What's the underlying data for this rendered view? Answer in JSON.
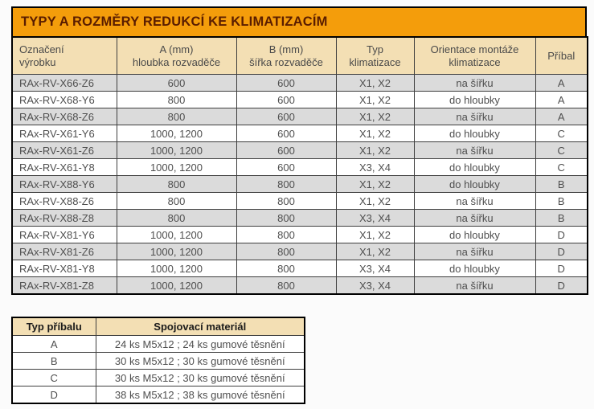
{
  "title_bar": {
    "text": "TYPY A ROZMĚRY REDUKCÍ KE KLIMATIZACÍM"
  },
  "colors": {
    "title_bg": "#F49D0B",
    "title_text": "#5A1D00",
    "header_bg": "#F3DFB4",
    "stripe_row_bg": "#DBDBDB",
    "row_bg": "#FFFFFF",
    "body_text": "#4F4F4F",
    "border": "#000000"
  },
  "main_table": {
    "columns": [
      [
        "Označení",
        "výrobku"
      ],
      [
        "A (mm)",
        "hloubka rozvaděče"
      ],
      [
        "B (mm)",
        "šířka rozvaděče"
      ],
      [
        "Typ",
        "klimatizace"
      ],
      [
        "Orientace montáže",
        "klimatizace"
      ],
      [
        "Příbal"
      ]
    ],
    "rows": [
      [
        "RAx-RV-X66-Z6",
        "600",
        "600",
        "X1, X2",
        "na šířku",
        "A"
      ],
      [
        "RAx-RV-X68-Y6",
        "800",
        "600",
        "X1, X2",
        "do hloubky",
        "A"
      ],
      [
        "RAx-RV-X68-Z6",
        "800",
        "600",
        "X1, X2",
        "na šířku",
        "A"
      ],
      [
        "RAx-RV-X61-Y6",
        "1000, 1200",
        "600",
        "X1, X2",
        "do hloubky",
        "C"
      ],
      [
        "RAx-RV-X61-Z6",
        "1000, 1200",
        "600",
        "X1, X2",
        "na šířku",
        "C"
      ],
      [
        "RAx-RV-X61-Y8",
        "1000, 1200",
        "600",
        "X3, X4",
        "do hloubky",
        "C"
      ],
      [
        "RAx-RV-X88-Y6",
        "800",
        "800",
        "X1, X2",
        "do hloubky",
        "B"
      ],
      [
        "RAx-RV-X88-Z6",
        "800",
        "800",
        "X1, X2",
        "na šířku",
        "B"
      ],
      [
        "RAx-RV-X88-Z8",
        "800",
        "800",
        "X3, X4",
        "na šířku",
        "B"
      ],
      [
        "RAx-RV-X81-Y6",
        "1000, 1200",
        "800",
        "X1, X2",
        "do hloubky",
        "D"
      ],
      [
        "RAx-RV-X81-Z6",
        "1000, 1200",
        "800",
        "X1, X2",
        "na šířku",
        "D"
      ],
      [
        "RAx-RV-X81-Y8",
        "1000, 1200",
        "800",
        "X3, X4",
        "do hloubky",
        "D"
      ],
      [
        "RAx-RV-X81-Z8",
        "1000, 1200",
        "800",
        "X3, X4",
        "na šířku",
        "D"
      ]
    ]
  },
  "accessory_table": {
    "columns": [
      "Typ příbalu",
      "Spojovací materiál"
    ],
    "rows": [
      [
        "A",
        "24 ks M5x12 ; 24 ks gumové těsnění"
      ],
      [
        "B",
        "30 ks M5x12 ; 30 ks gumové těsnění"
      ],
      [
        "C",
        "30 ks M5x12 ; 30 ks gumové těsnění"
      ],
      [
        "D",
        "38 ks M5x12 ; 38 ks gumové těsnění"
      ]
    ]
  }
}
